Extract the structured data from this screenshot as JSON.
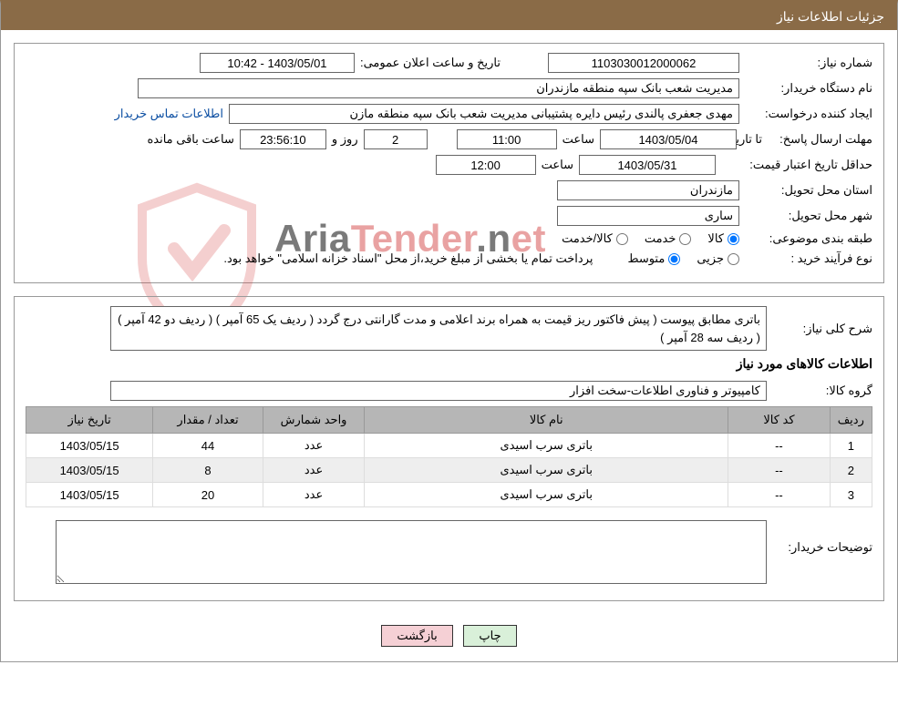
{
  "header": {
    "title": "جزئیات اطلاعات نیاز"
  },
  "info": {
    "need_no_label": "شماره نیاز:",
    "need_no": "1103030012000062",
    "announce_label": "تاریخ و ساعت اعلان عمومی:",
    "announce_value": "1403/05/01 - 10:42",
    "buyer_org_label": "نام دستگاه خریدار:",
    "buyer_org": "مدیریت شعب بانک سپه منطقه مازندران",
    "requester_label": "ایجاد کننده درخواست:",
    "requester": "مهدی جعفری پالندی رئیس دایره پشتیبانی مدیریت شعب بانک سپه منطقه مازن",
    "contact_link": "اطلاعات تماس خریدار",
    "deadline_label": "مهلت ارسال پاسخ:",
    "to_date_label": "تا تاریخ:",
    "deadline_date": "1403/05/04",
    "time_label": "ساعت",
    "deadline_time": "11:00",
    "days_remaining": "2",
    "days_word": "روز و",
    "countdown": "23:56:10",
    "remaining_word": "ساعت باقی مانده",
    "validity_label": "حداقل تاریخ اعتبار قیمت:",
    "validity_date": "1403/05/31",
    "validity_time": "12:00",
    "delivery_province_label": "استان محل تحویل:",
    "delivery_province": "مازندران",
    "delivery_city_label": "شهر محل تحویل:",
    "delivery_city": "ساری",
    "category_label": "طبقه بندی موضوعی:",
    "cat_goods": "کالا",
    "cat_service": "خدمت",
    "cat_goods_service": "کالا/خدمت",
    "process_label": "نوع فرآیند خرید :",
    "process_partial": "جزیی",
    "process_medium": "متوسط",
    "process_note": "پرداخت تمام یا بخشی از مبلغ خرید،از محل \"اسناد خزانه اسلامی\" خواهد بود."
  },
  "details": {
    "summary_label": "شرح کلی نیاز:",
    "summary": "باتری مطابق پیوست ( پیش فاکتور ریز قیمت به همراه برند اعلامی و مدت گارانتی درج گردد ( ردیف یک 65 آمپر ) ( ردیف دو 42 آمپر ) ( ردیف سه 28 آمپر )",
    "items_section_title": "اطلاعات کالاهای مورد نیاز",
    "group_label": "گروه کالا:",
    "group": "کامپیوتر و فناوری اطلاعات-سخت افزار",
    "columns": {
      "row": "ردیف",
      "code": "کد کالا",
      "name": "نام کالا",
      "unit": "واحد شمارش",
      "qty": "تعداد / مقدار",
      "date": "تاریخ نیاز"
    },
    "rows": [
      {
        "row": "1",
        "code": "--",
        "name": "باتری سرب اسیدی",
        "unit": "عدد",
        "qty": "44",
        "date": "1403/05/15"
      },
      {
        "row": "2",
        "code": "--",
        "name": "باتری سرب اسیدی",
        "unit": "عدد",
        "qty": "8",
        "date": "1403/05/15"
      },
      {
        "row": "3",
        "code": "--",
        "name": "باتری سرب اسیدی",
        "unit": "عدد",
        "qty": "20",
        "date": "1403/05/15"
      }
    ],
    "col_widths": {
      "row": "5%",
      "code": "12%",
      "name": "43%",
      "unit": "12%",
      "qty": "13%",
      "date": "15%"
    },
    "buyer_notes_label": "توضیحات خریدار:"
  },
  "buttons": {
    "print": "چاپ",
    "back": "بازگشت"
  },
  "watermark": {
    "shield_stroke": "#d64545",
    "text_a": "Aria",
    "text_b": "Tender",
    "text_c": ".n",
    "text_d": "et"
  },
  "colors": {
    "header_bg": "#8a6b47",
    "border": "#999999",
    "table_header_bg": "#b6b6b6",
    "row_alt": "#eeeeee",
    "link": "#0b4ea2",
    "btn_print_bg": "#d9f0d9",
    "btn_back_bg": "#f5d0d5"
  }
}
